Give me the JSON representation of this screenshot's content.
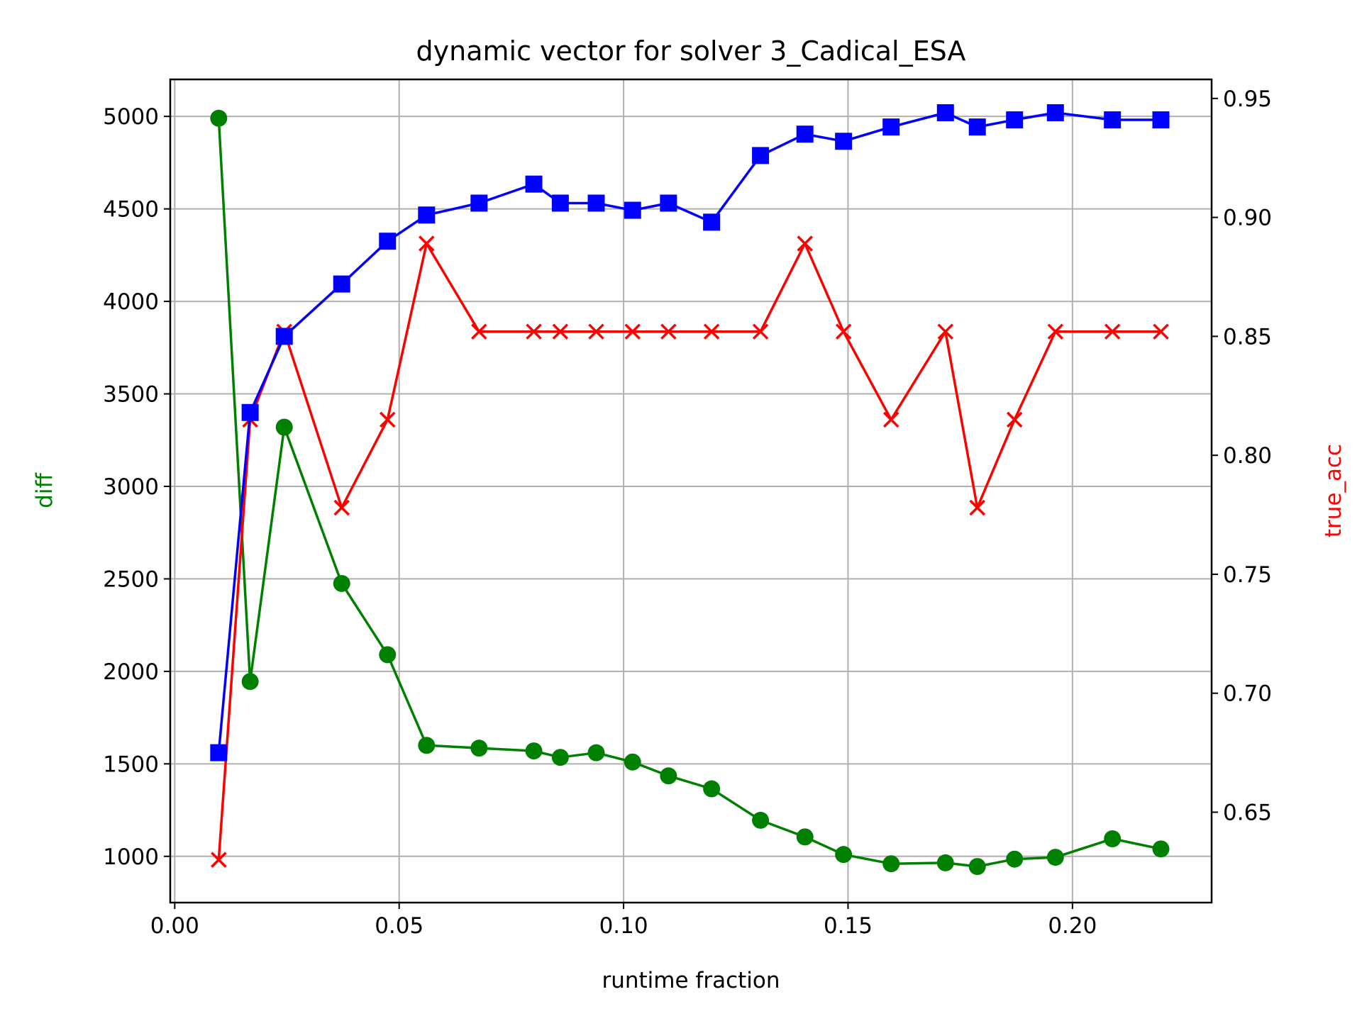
{
  "chart_data": {
    "type": "line",
    "title": "dynamic vector for solver 3_Cadical_ESA",
    "xlabel": "runtime fraction",
    "ylabel_left": "diff",
    "ylabel_right": "true_acc",
    "xlim": [
      -0.001,
      0.231
    ],
    "ylim_left": [
      750,
      5200
    ],
    "ylim_right": [
      0.612,
      0.958
    ],
    "x_ticks": [
      0.0,
      0.05,
      0.1,
      0.15,
      0.2
    ],
    "x_tick_labels": [
      "0.00",
      "0.05",
      "0.10",
      "0.15",
      "0.20"
    ],
    "y_left_ticks": [
      1000,
      1500,
      2000,
      2500,
      3000,
      3500,
      4000,
      4500,
      5000
    ],
    "y_left_tick_labels": [
      "1000",
      "1500",
      "2000",
      "2500",
      "3000",
      "3500",
      "4000",
      "4500",
      "5000"
    ],
    "y_right_ticks": [
      0.65,
      0.7,
      0.75,
      0.8,
      0.85,
      0.9,
      0.95
    ],
    "y_right_tick_labels": [
      "0.65",
      "0.70",
      "0.75",
      "0.80",
      "0.85",
      "0.90",
      "0.95"
    ],
    "grid": true,
    "x": [
      0.0098,
      0.0168,
      0.0244,
      0.0372,
      0.0474,
      0.0561,
      0.0678,
      0.08,
      0.0859,
      0.0939,
      0.102,
      0.11,
      0.1196,
      0.1305,
      0.1404,
      0.149,
      0.1596,
      0.1717,
      0.1788,
      0.1871,
      0.1962,
      0.2089,
      0.2197
    ],
    "series": [
      {
        "axis": "left",
        "color": "#008000",
        "marker": "circle",
        "values": [
          4990,
          1945,
          3320,
          2475,
          2090,
          1600,
          1585,
          1570,
          1535,
          1560,
          1510,
          1435,
          1365,
          1195,
          1105,
          1010,
          960,
          965,
          945,
          985,
          995,
          1095,
          1040
        ]
      },
      {
        "axis": "right",
        "color": "#0000ff",
        "marker": "square",
        "values": [
          0.675,
          0.818,
          0.85,
          0.872,
          0.89,
          0.901,
          0.906,
          0.914,
          0.906,
          0.906,
          0.903,
          0.906,
          0.898,
          0.926,
          0.935,
          0.932,
          0.938,
          0.944,
          0.938,
          0.941,
          0.944,
          0.941,
          0.941
        ]
      },
      {
        "axis": "right",
        "color": "#ff0000",
        "marker": "x",
        "values": [
          0.63,
          0.815,
          0.852,
          0.778,
          0.815,
          0.889,
          0.852,
          0.852,
          0.852,
          0.852,
          0.852,
          0.852,
          0.852,
          0.852,
          0.889,
          0.852,
          0.815,
          0.852,
          0.778,
          0.815,
          0.852,
          0.852,
          0.852
        ]
      }
    ]
  }
}
